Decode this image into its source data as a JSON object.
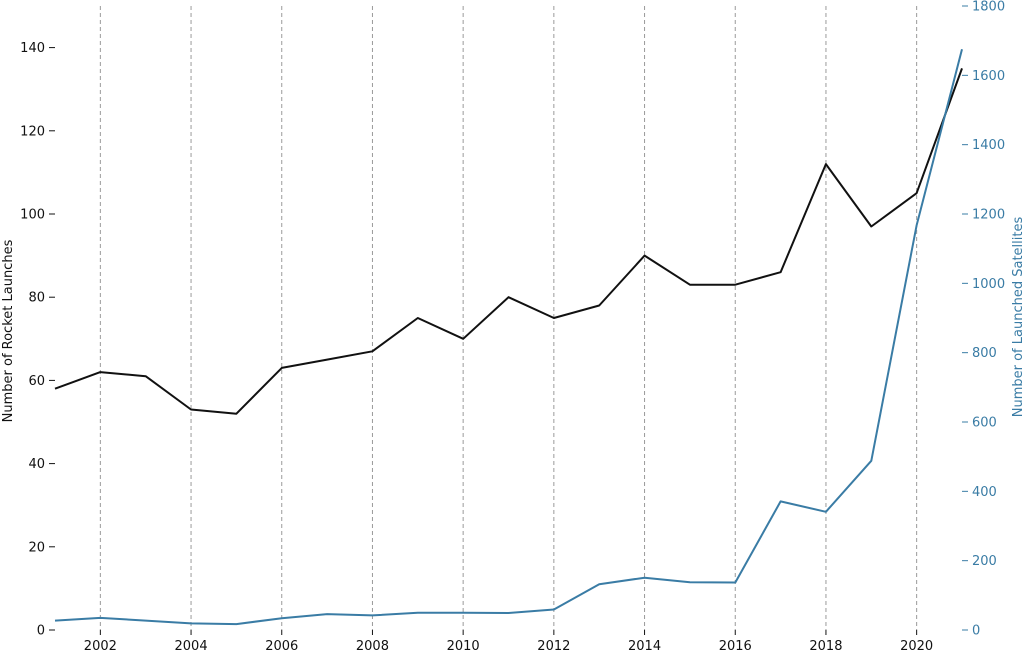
{
  "chart_data": {
    "type": "line",
    "title": "",
    "x": [
      2001,
      2002,
      2003,
      2004,
      2005,
      2006,
      2007,
      2008,
      2009,
      2010,
      2011,
      2012,
      2013,
      2014,
      2015,
      2016,
      2017,
      2018,
      2019,
      2020,
      2021
    ],
    "xlim": [
      2001,
      2021
    ],
    "xticks": [
      2002,
      2004,
      2006,
      2008,
      2010,
      2012,
      2014,
      2016,
      2018,
      2020
    ],
    "ylabel": "Number of Rocket Launches",
    "ylim": [
      0,
      150
    ],
    "yticks": [
      0,
      20,
      40,
      60,
      80,
      100,
      120,
      140
    ],
    "y2label": "Number of Launched Satellites",
    "y2lim": [
      0,
      1800
    ],
    "y2ticks": [
      0,
      200,
      400,
      600,
      800,
      1000,
      1200,
      1400,
      1600,
      1800
    ],
    "grid": "vertical dashed at x ticks",
    "series": [
      {
        "axis": "left",
        "color": "#111111",
        "values": [
          58,
          62,
          61,
          53,
          52,
          63,
          65,
          67,
          75,
          70,
          80,
          75,
          78,
          90,
          83,
          83,
          86,
          112,
          97,
          105,
          135
        ]
      },
      {
        "axis": "right",
        "color": "#3a7ca5",
        "values": [
          27,
          35,
          27,
          19,
          17,
          34,
          46,
          42,
          50,
          50,
          49,
          59,
          132,
          151,
          138,
          137,
          371,
          341,
          488,
          1167,
          1675
        ]
      }
    ]
  }
}
